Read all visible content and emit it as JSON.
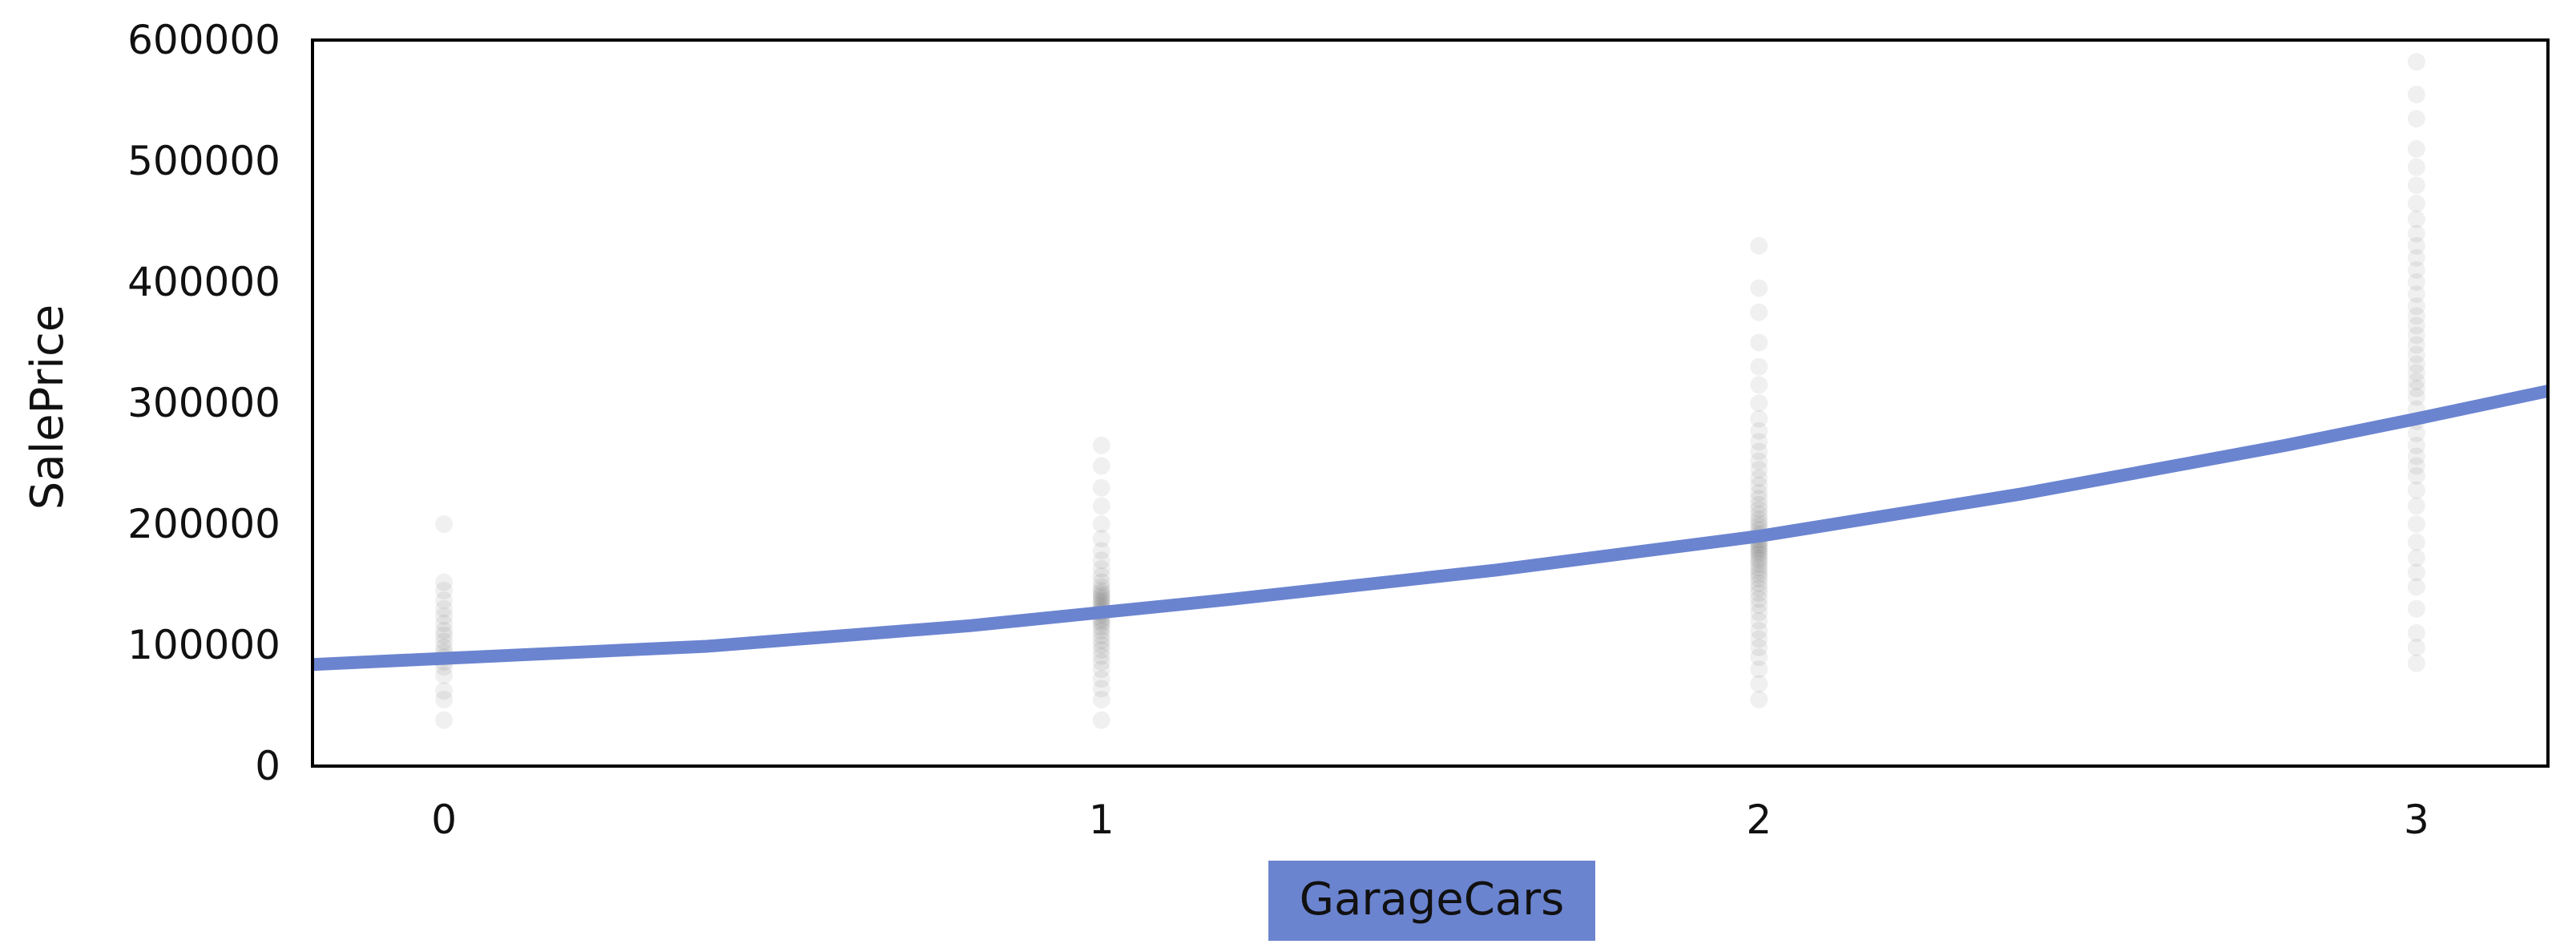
{
  "chart_data": {
    "type": "scatter",
    "xlabel": "GarageCars",
    "ylabel": "SalePrice",
    "xlim": [
      -0.2,
      3.2
    ],
    "ylim": [
      0,
      600000
    ],
    "x_ticks": [
      0,
      1,
      2,
      3
    ],
    "y_ticks": [
      0,
      100000,
      200000,
      300000,
      400000,
      500000,
      600000
    ],
    "grid": false,
    "legend": "none",
    "colors": {
      "trend": "#6b84d0",
      "xlabel_highlight": "#6b84d0",
      "points": "#000000"
    },
    "points_by_x": [
      {
        "x": 0,
        "y": [
          38000,
          55000,
          62000,
          75000,
          82000,
          86000,
          90000,
          94000,
          98000,
          103000,
          108000,
          112000,
          118000,
          124000,
          130000,
          137000,
          145000,
          152000,
          200000
        ]
      },
      {
        "x": 1,
        "y": [
          38000,
          55000,
          64000,
          72000,
          80000,
          86000,
          91000,
          96000,
          100000,
          104000,
          108000,
          112000,
          115000,
          118000,
          120000,
          122000,
          125000,
          127000,
          129000,
          131000,
          133000,
          135000,
          137000,
          139000,
          141000,
          143000,
          145000,
          148000,
          152000,
          157000,
          163000,
          170000,
          178000,
          188000,
          200000,
          215000,
          230000,
          248000,
          265000
        ]
      },
      {
        "x": 2,
        "y": [
          55000,
          68000,
          80000,
          90000,
          98000,
          105000,
          112000,
          120000,
          127000,
          133000,
          138000,
          143000,
          147000,
          151000,
          155000,
          158000,
          161000,
          164000,
          167000,
          170000,
          172000,
          175000,
          177000,
          179000,
          181000,
          183000,
          185000,
          187000,
          190000,
          192000,
          195000,
          198000,
          201000,
          204000,
          208000,
          212000,
          216000,
          221000,
          226000,
          232000,
          238000,
          245000,
          252000,
          260000,
          268000,
          277000,
          287000,
          300000,
          315000,
          330000,
          350000,
          375000,
          395000,
          430000
        ]
      },
      {
        "x": 3,
        "y": [
          85000,
          98000,
          110000,
          130000,
          148000,
          160000,
          172000,
          185000,
          200000,
          215000,
          228000,
          240000,
          248000,
          256000,
          265000,
          275000,
          285000,
          295000,
          305000,
          312000,
          318000,
          325000,
          332000,
          340000,
          348000,
          356000,
          364000,
          372000,
          380000,
          390000,
          400000,
          410000,
          420000,
          430000,
          440000,
          452000,
          465000,
          480000,
          495000,
          510000,
          535000,
          555000,
          582000
        ]
      }
    ],
    "trend_line": {
      "x": [
        -0.2,
        0,
        0.4,
        0.8,
        1,
        1.2,
        1.6,
        2,
        2.4,
        2.8,
        3,
        3.2
      ],
      "y": [
        84000,
        89000,
        99000,
        116000,
        127000,
        138000,
        162000,
        190000,
        225000,
        265000,
        287000,
        310000
      ]
    }
  }
}
